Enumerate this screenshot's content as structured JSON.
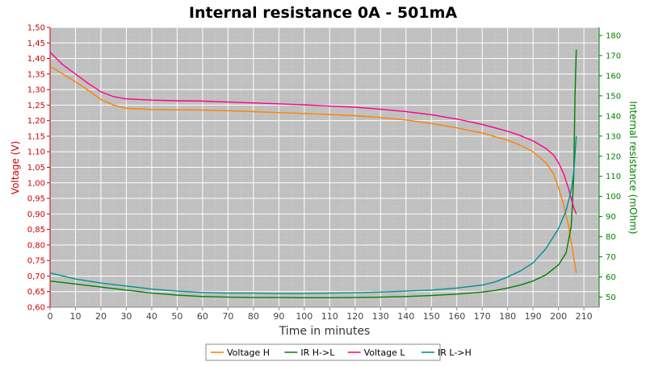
{
  "chart_data": {
    "type": "line",
    "title": "Internal resistance  0A - 501mA",
    "xlabel": "Time in minutes",
    "ylabel_left": "Voltage (V)",
    "ylabel_right": "Internal resistance (mOhm)",
    "xlim": [
      0,
      216
    ],
    "ylim_left": [
      0.6,
      1.5
    ],
    "ylim_right": [
      45,
      184
    ],
    "x_ticks": [
      0,
      10,
      20,
      30,
      40,
      50,
      60,
      70,
      80,
      90,
      100,
      110,
      120,
      130,
      140,
      150,
      160,
      170,
      180,
      190,
      200,
      210
    ],
    "y_left_ticks": [
      "0,60",
      "0,65",
      "0,70",
      "0,75",
      "0,80",
      "0,85",
      "0,90",
      "0,95",
      "1,00",
      "1,05",
      "1,10",
      "1,15",
      "1,20",
      "1,25",
      "1,30",
      "1,35",
      "1,40",
      "1,45",
      "1,50"
    ],
    "y_right_ticks": [
      50,
      60,
      70,
      80,
      90,
      100,
      110,
      120,
      130,
      140,
      150,
      160,
      170,
      180
    ],
    "grid": true,
    "legend_position": "bottom-center",
    "colors": {
      "plot_bg": "#c0c0c0",
      "grid": "#ffffff",
      "left_axis": "#cc0000",
      "right_axis": "#008000"
    },
    "series": [
      {
        "name": "Voltage H",
        "axis": "left",
        "color": "#ff8000",
        "x": [
          0,
          5,
          10,
          15,
          20,
          25,
          30,
          40,
          50,
          60,
          70,
          80,
          90,
          100,
          110,
          120,
          130,
          140,
          150,
          160,
          170,
          180,
          185,
          190,
          195,
          198,
          200,
          202,
          204,
          205,
          206,
          207
        ],
        "y": [
          1.375,
          1.35,
          1.325,
          1.298,
          1.268,
          1.25,
          1.24,
          1.236,
          1.235,
          1.234,
          1.232,
          1.229,
          1.226,
          1.223,
          1.22,
          1.216,
          1.21,
          1.202,
          1.191,
          1.177,
          1.16,
          1.137,
          1.121,
          1.1,
          1.065,
          1.03,
          0.985,
          0.93,
          0.86,
          0.81,
          0.76,
          0.71
        ]
      },
      {
        "name": "IR H->L",
        "axis": "right",
        "color": "#008000",
        "x": [
          0,
          10,
          20,
          30,
          40,
          50,
          60,
          70,
          80,
          90,
          100,
          110,
          120,
          130,
          140,
          150,
          160,
          170,
          175,
          180,
          185,
          190,
          195,
          200,
          203,
          205,
          206,
          206.5,
          207
        ],
        "y": [
          58,
          56.5,
          55,
          53.5,
          52,
          51,
          50.3,
          50,
          49.8,
          49.8,
          49.7,
          49.7,
          49.8,
          50,
          50.3,
          50.8,
          51.5,
          52.5,
          53.3,
          54.5,
          56,
          58,
          61,
          66,
          72,
          85,
          110,
          150,
          173
        ]
      },
      {
        "name": "Voltage L",
        "axis": "left",
        "color": "#ff0080",
        "x": [
          0,
          5,
          10,
          15,
          20,
          25,
          30,
          40,
          50,
          60,
          70,
          80,
          90,
          100,
          110,
          120,
          130,
          140,
          150,
          160,
          170,
          180,
          185,
          190,
          195,
          198,
          200,
          202,
          204,
          205,
          206,
          207
        ],
        "y": [
          1.42,
          1.38,
          1.35,
          1.32,
          1.293,
          1.277,
          1.27,
          1.266,
          1.264,
          1.263,
          1.26,
          1.257,
          1.254,
          1.251,
          1.247,
          1.243,
          1.237,
          1.229,
          1.219,
          1.205,
          1.188,
          1.166,
          1.152,
          1.135,
          1.111,
          1.09,
          1.065,
          1.03,
          0.98,
          0.95,
          0.92,
          0.9
        ]
      },
      {
        "name": "IR L->H",
        "axis": "right",
        "color": "#009090",
        "x": [
          0,
          10,
          20,
          30,
          40,
          50,
          60,
          70,
          80,
          90,
          100,
          110,
          120,
          130,
          140,
          150,
          160,
          170,
          175,
          180,
          185,
          190,
          195,
          200,
          203,
          205,
          206,
          207
        ],
        "y": [
          62,
          59,
          57,
          55.5,
          54,
          53,
          52.3,
          52,
          52,
          51.8,
          51.8,
          52,
          52.2,
          52.5,
          53,
          53.5,
          54.5,
          56,
          57.5,
          60,
          63,
          67,
          74,
          84,
          93,
          103,
          112,
          130
        ]
      }
    ]
  }
}
